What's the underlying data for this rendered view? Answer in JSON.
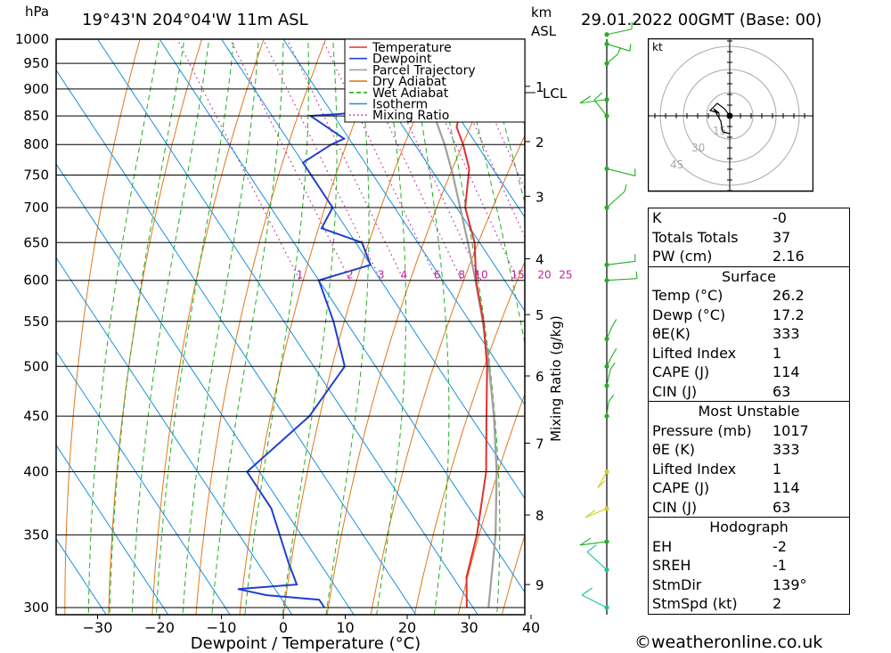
{
  "header": {
    "pressure_unit": "hPa",
    "location": "19°43'N  204°04'W  11m  ASL",
    "height_unit_1": "km",
    "height_unit_2": "ASL",
    "datetime": "29.01.2022  00GMT  (Base: 00)"
  },
  "chart_data": {
    "type": "line",
    "xlabel": "Dewpoint / Temperature (°C)",
    "ylabel_pressure": "hPa",
    "mixing_axis_label": "Mixing Ratio (g/kg)",
    "x_ticks": [
      -30,
      -20,
      -10,
      0,
      10,
      20,
      30,
      40
    ],
    "pressure_levels": [
      300,
      350,
      400,
      450,
      500,
      550,
      600,
      650,
      700,
      750,
      800,
      850,
      900,
      950,
      1000
    ],
    "height_ticks": [
      {
        "km": "1",
        "p": 905
      },
      {
        "km": "2",
        "p": 805
      },
      {
        "km": "3",
        "p": 717
      },
      {
        "km": "4",
        "p": 628
      },
      {
        "km": "5",
        "p": 558
      },
      {
        "km": "6",
        "p": 490
      },
      {
        "km": "7",
        "p": 425
      },
      {
        "km": "8",
        "p": 365
      },
      {
        "km": "9",
        "p": 315
      }
    ],
    "lcl": {
      "label": "LCL",
      "p": 893
    },
    "mixing_ratio_labels": [
      "1",
      "2",
      "3",
      "4",
      "6",
      "8",
      "10",
      "15",
      "20",
      "25"
    ],
    "legend": [
      {
        "name": "Temperature",
        "color": "#e03030",
        "style": "solid"
      },
      {
        "name": "Dewpoint",
        "color": "#2040d0",
        "style": "solid"
      },
      {
        "name": "Parcel Trajectory",
        "color": "#a0a0a0",
        "style": "solid"
      },
      {
        "name": "Dry Adiabat",
        "color": "#e07818",
        "style": "solid"
      },
      {
        "name": "Wet Adiabat",
        "color": "#20b020",
        "style": "dashed"
      },
      {
        "name": "Isotherm",
        "color": "#1890e0",
        "style": "solid"
      },
      {
        "name": "Mixing Ratio",
        "color": "#c020a0",
        "style": "dotted"
      }
    ],
    "series": [
      {
        "name": "Temperature",
        "points": [
          [
            1017,
            26.2
          ],
          [
            1000,
            24.6
          ],
          [
            950,
            21.2
          ],
          [
            900,
            18.6
          ],
          [
            870,
            17.8
          ],
          [
            850,
            20.2
          ],
          [
            830,
            18.6
          ],
          [
            800,
            17.8
          ],
          [
            760,
            16.2
          ],
          [
            700,
            11.4
          ],
          [
            650,
            9.2
          ],
          [
            600,
            5.4
          ],
          [
            550,
            2.2
          ],
          [
            500,
            -2.0
          ],
          [
            450,
            -7.4
          ],
          [
            400,
            -13.4
          ],
          [
            350,
            -21.6
          ],
          [
            320,
            -27.8
          ],
          [
            300,
            -31.0
          ]
        ]
      },
      {
        "name": "Dewpoint",
        "points": [
          [
            1017,
            17.2
          ],
          [
            1000,
            16.8
          ],
          [
            950,
            15.2
          ],
          [
            900,
            14.4
          ],
          [
            870,
            14.0
          ],
          [
            860,
            10.0
          ],
          [
            850,
            -3.8
          ],
          [
            810,
            -0.8
          ],
          [
            800,
            -3.5
          ],
          [
            770,
            -10.0
          ],
          [
            700,
            -10.0
          ],
          [
            670,
            -14.0
          ],
          [
            650,
            -9.0
          ],
          [
            620,
            -10.0
          ],
          [
            600,
            -20.0
          ],
          [
            550,
            -22.0
          ],
          [
            500,
            -25.0
          ],
          [
            450,
            -36.0
          ],
          [
            400,
            -52.0
          ],
          [
            370,
            -52.0
          ],
          [
            330,
            -55.0
          ],
          [
            315,
            -56.0
          ],
          [
            312,
            -66.0
          ],
          [
            308,
            -62.0
          ],
          [
            305,
            -54.0
          ],
          [
            300,
            -54.0
          ]
        ]
      },
      {
        "name": "Parcel Trajectory",
        "points": [
          [
            1017,
            26.2
          ],
          [
            950,
            20.3
          ],
          [
            893,
            17.3
          ],
          [
            850,
            16.2
          ],
          [
            800,
            14.8
          ],
          [
            750,
            12.9
          ],
          [
            700,
            10.6
          ],
          [
            650,
            8.1
          ],
          [
            600,
            5.3
          ],
          [
            550,
            2.1
          ],
          [
            500,
            -1.7
          ],
          [
            450,
            -6.2
          ],
          [
            400,
            -11.7
          ],
          [
            350,
            -18.6
          ],
          [
            300,
            -27.5
          ]
        ]
      }
    ],
    "hodograph": {
      "unit": "kt",
      "rings": [
        "15",
        "30",
        "45"
      ]
    },
    "wind_profile_colors": [
      "#20c0a0",
      "#20b020",
      "#d0d020"
    ]
  },
  "stats": {
    "rows1": [
      {
        "label": "K",
        "value": "-0"
      },
      {
        "label": "Totals Totals",
        "value": "37"
      },
      {
        "label": "PW (cm)",
        "value": "2.16"
      }
    ],
    "surface_title": "Surface",
    "surface": [
      {
        "label": "Temp (°C)",
        "value": "26.2"
      },
      {
        "label": "Dewp (°C)",
        "value": "17.2"
      },
      {
        "label": "θE(K)",
        "value": "333"
      },
      {
        "label": "Lifted Index",
        "value": "1"
      },
      {
        "label": "CAPE (J)",
        "value": "114"
      },
      {
        "label": "CIN (J)",
        "value": "63"
      }
    ],
    "mu_title": "Most Unstable",
    "mu": [
      {
        "label": "Pressure (mb)",
        "value": "1017"
      },
      {
        "label": "θE (K)",
        "value": "333"
      },
      {
        "label": "Lifted Index",
        "value": "1"
      },
      {
        "label": "CAPE (J)",
        "value": "114"
      },
      {
        "label": "CIN (J)",
        "value": "63"
      }
    ],
    "hodo_title": "Hodograph",
    "hodo": [
      {
        "label": "EH",
        "value": "-2"
      },
      {
        "label": "SREH",
        "value": "-1"
      },
      {
        "label": "StmDir",
        "value": "139°"
      },
      {
        "label": "StmSpd (kt)",
        "value": "2"
      }
    ]
  },
  "footer": {
    "copyright": "©weatheronline.co.uk"
  }
}
